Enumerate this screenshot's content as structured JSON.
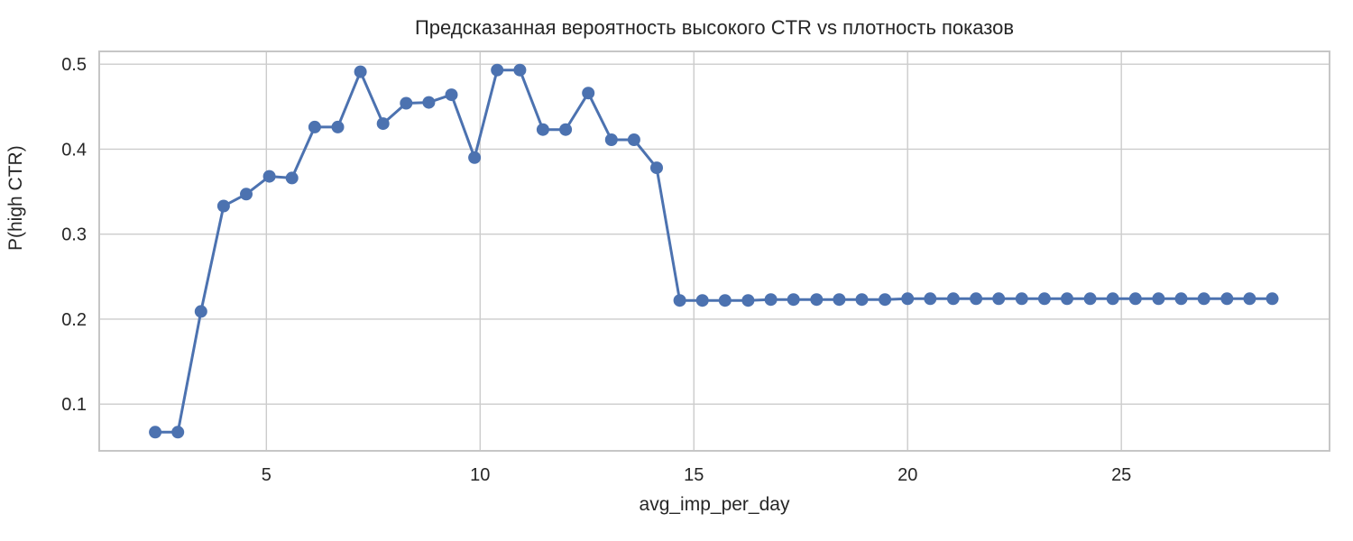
{
  "chart_data": {
    "type": "line",
    "title": "Предсказанная вероятность высокого CTR vs плотность показов",
    "xlabel": "avg_imp_per_day",
    "ylabel": "P(high CTR)",
    "xlim": [
      1.09,
      29.87
    ],
    "ylim": [
      0.045,
      0.515
    ],
    "x_ticks": [
      5,
      10,
      15,
      20,
      25
    ],
    "y_ticks": [
      0.1,
      0.2,
      0.3,
      0.4,
      0.5
    ],
    "grid": true,
    "legend": false,
    "marker": "circle",
    "series": [
      {
        "name": "P(high CTR)",
        "x": [
          2.4,
          2.93,
          3.47,
          4.0,
          4.53,
          5.07,
          5.6,
          6.13,
          6.67,
          7.2,
          7.73,
          8.27,
          8.8,
          9.33,
          9.87,
          10.4,
          10.93,
          11.47,
          12.0,
          12.53,
          13.07,
          13.6,
          14.13,
          14.67,
          15.2,
          15.73,
          16.27,
          16.8,
          17.33,
          17.87,
          18.4,
          18.93,
          19.47,
          20.0,
          20.53,
          21.07,
          21.6,
          22.13,
          22.67,
          23.2,
          23.73,
          24.27,
          24.8,
          25.33,
          25.87,
          26.4,
          26.93,
          27.47,
          28.0,
          28.53
        ],
        "y": [
          0.067,
          0.067,
          0.209,
          0.333,
          0.347,
          0.368,
          0.366,
          0.426,
          0.426,
          0.491,
          0.43,
          0.454,
          0.455,
          0.464,
          0.39,
          0.493,
          0.493,
          0.423,
          0.423,
          0.466,
          0.411,
          0.411,
          0.378,
          0.222,
          0.222,
          0.222,
          0.222,
          0.223,
          0.223,
          0.223,
          0.223,
          0.223,
          0.223,
          0.224,
          0.224,
          0.224,
          0.224,
          0.224,
          0.224,
          0.224,
          0.224,
          0.224,
          0.224,
          0.224,
          0.224,
          0.224,
          0.224,
          0.224,
          0.224,
          0.224
        ]
      }
    ]
  },
  "colors": {
    "line": "#4c72b0",
    "marker": "#4c72b0",
    "grid": "#cccccc",
    "axes_border": "#c6c6c6",
    "text": "#262626",
    "background": "#ffffff"
  }
}
